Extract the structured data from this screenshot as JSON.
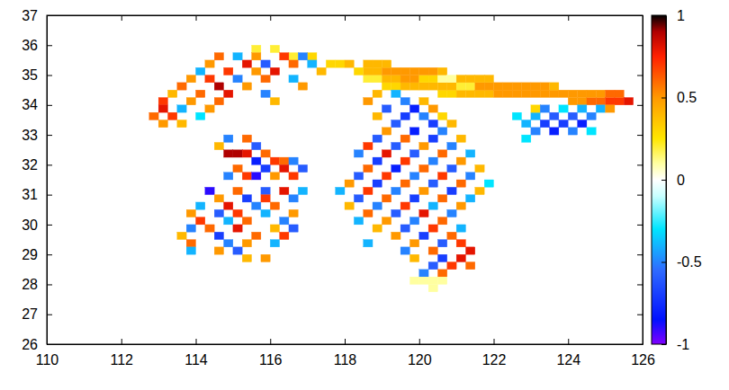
{
  "chart_data": {
    "type": "heatmap",
    "xlim": [
      110,
      126
    ],
    "xticks": [
      110,
      112,
      114,
      116,
      118,
      120,
      122,
      124,
      126
    ],
    "ylim": [
      26,
      37
    ],
    "yticks": [
      26,
      27,
      28,
      29,
      30,
      31,
      32,
      33,
      34,
      35,
      36,
      37
    ],
    "grid": false,
    "cell_size": 0.25,
    "colorbar_range": [
      -1,
      1
    ],
    "colorbar_ticks": [
      -1,
      -0.5,
      0,
      0.5,
      1
    ],
    "cells": [
      [
        118.5,
        34.75,
        0.2
      ],
      [
        118.5,
        35.0,
        0.4
      ],
      [
        118.5,
        35.25,
        0.4
      ],
      [
        118.75,
        34.75,
        0.2
      ],
      [
        118.75,
        35.0,
        0.4
      ],
      [
        118.75,
        35.25,
        0.4
      ],
      [
        119.0,
        34.5,
        0.3
      ],
      [
        119.0,
        34.75,
        0.4
      ],
      [
        119.0,
        35.0,
        0.5
      ],
      [
        119.0,
        35.25,
        0.4
      ],
      [
        119.25,
        34.5,
        0.3
      ],
      [
        119.25,
        34.75,
        0.4
      ],
      [
        119.25,
        35.0,
        0.5
      ],
      [
        119.5,
        34.5,
        0.4
      ],
      [
        119.5,
        34.75,
        0.5
      ],
      [
        119.5,
        35.0,
        0.5
      ],
      [
        119.75,
        34.5,
        0.4
      ],
      [
        119.75,
        34.75,
        0.5
      ],
      [
        119.75,
        35.0,
        0.5
      ],
      [
        120.0,
        34.5,
        0.4
      ],
      [
        120.0,
        34.75,
        0.3
      ],
      [
        120.0,
        35.0,
        0.5
      ],
      [
        120.25,
        34.5,
        0.4
      ],
      [
        120.25,
        34.75,
        0.3
      ],
      [
        120.25,
        35.0,
        0.5
      ],
      [
        120.5,
        34.25,
        0.3
      ],
      [
        120.5,
        34.5,
        0.4
      ],
      [
        120.5,
        34.75,
        0.1
      ],
      [
        120.5,
        35.0,
        0.4
      ],
      [
        120.75,
        34.25,
        0.3
      ],
      [
        120.75,
        34.5,
        0.4
      ],
      [
        120.75,
        34.75,
        0.1
      ],
      [
        121.0,
        34.25,
        0.4
      ],
      [
        121.0,
        34.5,
        0.2
      ],
      [
        121.0,
        34.75,
        0.4
      ],
      [
        121.25,
        34.25,
        0.4
      ],
      [
        121.25,
        34.5,
        0.2
      ],
      [
        121.25,
        34.75,
        0.4
      ],
      [
        121.5,
        34.25,
        0.4
      ],
      [
        121.5,
        34.5,
        0.5
      ],
      [
        121.5,
        34.75,
        0.4
      ],
      [
        121.75,
        34.25,
        0.4
      ],
      [
        121.75,
        34.5,
        0.5
      ],
      [
        121.75,
        34.75,
        0.4
      ],
      [
        122.0,
        34.25,
        0.5
      ],
      [
        122.0,
        34.5,
        0.5
      ],
      [
        122.25,
        34.25,
        0.5
      ],
      [
        122.25,
        34.5,
        0.5
      ],
      [
        122.5,
        34.25,
        0.5
      ],
      [
        122.5,
        34.5,
        0.5
      ],
      [
        122.75,
        34.25,
        0.5
      ],
      [
        122.75,
        34.5,
        0.5
      ],
      [
        123.0,
        34.25,
        0.5
      ],
      [
        123.0,
        34.5,
        0.5
      ],
      [
        123.25,
        34.25,
        0.5
      ],
      [
        123.25,
        34.5,
        0.5
      ],
      [
        123.5,
        34.25,
        0.5
      ],
      [
        123.5,
        34.5,
        0.4
      ],
      [
        123.75,
        34.25,
        0.5
      ],
      [
        124.0,
        34.0,
        0.5
      ],
      [
        124.0,
        34.25,
        0.5
      ],
      [
        124.25,
        34.0,
        0.5
      ],
      [
        124.25,
        34.25,
        0.5
      ],
      [
        124.5,
        34.0,
        0.6
      ],
      [
        124.5,
        34.25,
        0.5
      ],
      [
        124.75,
        34.0,
        0.6
      ],
      [
        124.75,
        34.25,
        0.5
      ],
      [
        125.0,
        34.0,
        0.7
      ],
      [
        125.0,
        34.25,
        0.6
      ],
      [
        125.25,
        34.0,
        0.7
      ],
      [
        125.25,
        34.25,
        0.6
      ],
      [
        125.5,
        34.0,
        0.8
      ],
      [
        115.5,
        35.75,
        0.2
      ],
      [
        116.0,
        35.75,
        0.2
      ],
      [
        116.5,
        35.5,
        0.2
      ],
      [
        117.0,
        35.5,
        0.3
      ],
      [
        117.5,
        35.25,
        0.3
      ],
      [
        117.75,
        35.25,
        0.3
      ],
      [
        118.0,
        35.25,
        0.4
      ],
      [
        118.25,
        35.0,
        0.3
      ],
      [
        122.5,
        33.5,
        -0.3
      ],
      [
        122.75,
        33.25,
        -0.4
      ],
      [
        122.75,
        32.75,
        -0.3
      ],
      [
        123.0,
        33.0,
        -0.5
      ],
      [
        123.0,
        33.5,
        -0.4
      ],
      [
        123.0,
        33.75,
        0.3
      ],
      [
        123.25,
        33.25,
        -0.7
      ],
      [
        123.25,
        33.75,
        -0.5
      ],
      [
        123.5,
        33.0,
        -0.8
      ],
      [
        123.5,
        33.5,
        -0.6
      ],
      [
        123.75,
        33.25,
        -0.7
      ],
      [
        123.75,
        33.75,
        -0.3
      ],
      [
        124.0,
        33.0,
        -0.5
      ],
      [
        124.0,
        33.5,
        -0.6
      ],
      [
        124.25,
        33.25,
        -0.8
      ],
      [
        124.25,
        33.75,
        -0.4
      ],
      [
        124.5,
        33.5,
        -0.5
      ],
      [
        124.5,
        33.0,
        -0.3
      ],
      [
        124.75,
        33.75,
        -0.4
      ],
      [
        125.0,
        33.75,
        0.5
      ],
      [
        114.5,
        35.5,
        0.6
      ],
      [
        115.0,
        35.5,
        -0.4
      ],
      [
        115.5,
        35.5,
        0.5
      ],
      [
        116.25,
        35.5,
        0.7
      ],
      [
        116.75,
        35.5,
        -0.5
      ],
      [
        114.25,
        35.25,
        0.5
      ],
      [
        115.25,
        35.25,
        0.8
      ],
      [
        115.75,
        35.25,
        -0.6
      ],
      [
        116.5,
        35.25,
        0.6
      ],
      [
        117.0,
        35.25,
        -0.4
      ],
      [
        114.0,
        35.0,
        -0.4
      ],
      [
        114.75,
        35.0,
        0.7
      ],
      [
        115.5,
        35.0,
        0.5
      ],
      [
        116.0,
        35.0,
        0.8
      ],
      [
        117.25,
        35.0,
        0.4
      ],
      [
        113.75,
        34.75,
        0.5
      ],
      [
        114.25,
        34.75,
        0.7
      ],
      [
        115.0,
        34.75,
        -0.5
      ],
      [
        115.75,
        34.75,
        0.6
      ],
      [
        116.5,
        34.75,
        -0.4
      ],
      [
        113.5,
        34.5,
        0.6
      ],
      [
        114.5,
        34.5,
        0.9
      ],
      [
        115.25,
        34.5,
        0.5
      ],
      [
        116.75,
        34.5,
        0.5
      ],
      [
        113.25,
        34.25,
        0.4
      ],
      [
        114.0,
        34.25,
        0.6
      ],
      [
        114.75,
        34.25,
        0.8
      ],
      [
        115.75,
        34.25,
        -0.5
      ],
      [
        113.0,
        34.0,
        0.7
      ],
      [
        113.75,
        34.0,
        0.5
      ],
      [
        114.5,
        34.0,
        0.6
      ],
      [
        116.0,
        34.0,
        0.4
      ],
      [
        113.0,
        33.75,
        0.8
      ],
      [
        113.5,
        33.75,
        -0.4
      ],
      [
        114.25,
        33.75,
        0.5
      ],
      [
        112.75,
        33.5,
        0.6
      ],
      [
        113.25,
        33.5,
        0.7
      ],
      [
        114.0,
        33.5,
        -0.3
      ],
      [
        113.0,
        33.25,
        0.5
      ],
      [
        113.5,
        33.25,
        0.4
      ],
      [
        114.75,
        32.75,
        -0.5
      ],
      [
        115.25,
        32.75,
        0.6
      ],
      [
        114.5,
        32.5,
        0.4
      ],
      [
        115.5,
        32.5,
        -0.6
      ],
      [
        114.75,
        32.25,
        0.9
      ],
      [
        115.0,
        32.25,
        0.9
      ],
      [
        115.25,
        32.25,
        0.8
      ],
      [
        115.75,
        32.25,
        0.6
      ],
      [
        115.5,
        32.0,
        -0.8
      ],
      [
        116.0,
        32.0,
        0.7
      ],
      [
        116.25,
        32.0,
        0.6
      ],
      [
        116.5,
        32.0,
        -0.5
      ],
      [
        115.0,
        31.75,
        0.6
      ],
      [
        115.75,
        31.75,
        -0.7
      ],
      [
        116.25,
        31.75,
        0.8
      ],
      [
        116.75,
        31.75,
        -0.6
      ],
      [
        114.75,
        31.5,
        -0.5
      ],
      [
        115.25,
        31.5,
        0.7
      ],
      [
        115.5,
        31.5,
        -0.9
      ],
      [
        116.0,
        31.5,
        0.5
      ],
      [
        116.5,
        31.5,
        0.7
      ],
      [
        114.25,
        31.0,
        -0.9
      ],
      [
        115.0,
        31.0,
        0.6
      ],
      [
        115.75,
        31.0,
        -0.6
      ],
      [
        116.25,
        31.0,
        0.8
      ],
      [
        116.75,
        31.0,
        -0.4
      ],
      [
        114.5,
        30.75,
        0.5
      ],
      [
        115.25,
        30.75,
        -0.7
      ],
      [
        115.75,
        30.75,
        0.7
      ],
      [
        116.5,
        30.75,
        -0.5
      ],
      [
        114.0,
        30.5,
        -0.4
      ],
      [
        114.75,
        30.5,
        0.8
      ],
      [
        115.5,
        30.5,
        -0.5
      ],
      [
        116.0,
        30.5,
        0.6
      ],
      [
        113.75,
        30.25,
        0.5
      ],
      [
        114.5,
        30.25,
        -0.6
      ],
      [
        115.0,
        30.25,
        0.7
      ],
      [
        115.75,
        30.25,
        -0.4
      ],
      [
        116.5,
        30.25,
        0.5
      ],
      [
        114.0,
        30.0,
        0.7
      ],
      [
        114.75,
        30.0,
        -0.4
      ],
      [
        115.25,
        30.0,
        0.6
      ],
      [
        116.25,
        30.0,
        -0.5
      ],
      [
        113.75,
        29.75,
        -0.5
      ],
      [
        114.25,
        29.75,
        0.6
      ],
      [
        115.0,
        29.75,
        0.8
      ],
      [
        116.0,
        29.75,
        0.4
      ],
      [
        116.5,
        29.75,
        -0.6
      ],
      [
        113.5,
        29.5,
        0.4
      ],
      [
        114.5,
        29.5,
        -0.7
      ],
      [
        115.5,
        29.5,
        0.6
      ],
      [
        116.25,
        29.5,
        0.7
      ],
      [
        113.75,
        29.25,
        0.6
      ],
      [
        114.75,
        29.25,
        -0.5
      ],
      [
        115.25,
        29.25,
        0.5
      ],
      [
        116.0,
        29.25,
        -0.4
      ],
      [
        113.75,
        29.0,
        -0.4
      ],
      [
        114.5,
        29.0,
        0.5
      ],
      [
        115.0,
        29.0,
        -0.6
      ],
      [
        115.25,
        28.75,
        0.4
      ],
      [
        115.75,
        28.75,
        0.5
      ],
      [
        118.75,
        34.25,
        0.4
      ],
      [
        119.25,
        34.25,
        -0.4
      ],
      [
        118.5,
        34.0,
        0.5
      ],
      [
        119.5,
        34.0,
        -0.5
      ],
      [
        120.0,
        34.0,
        0.4
      ],
      [
        119.0,
        33.75,
        -0.6
      ],
      [
        119.75,
        33.75,
        -0.8
      ],
      [
        120.25,
        33.75,
        0.5
      ],
      [
        118.75,
        33.5,
        0.4
      ],
      [
        119.5,
        33.5,
        -0.7
      ],
      [
        120.0,
        33.5,
        -0.5
      ],
      [
        120.5,
        33.5,
        0.3
      ],
      [
        119.25,
        33.25,
        -0.6
      ],
      [
        120.25,
        33.25,
        -0.7
      ],
      [
        120.75,
        33.25,
        0.4
      ],
      [
        119.0,
        33.0,
        0.5
      ],
      [
        119.75,
        33.0,
        -0.8
      ],
      [
        120.5,
        33.0,
        -0.5
      ],
      [
        118.75,
        32.75,
        -0.6
      ],
      [
        119.5,
        32.75,
        0.6
      ],
      [
        120.25,
        32.75,
        -0.7
      ],
      [
        121.0,
        32.75,
        0.4
      ],
      [
        118.5,
        32.5,
        0.7
      ],
      [
        119.25,
        32.5,
        -0.6
      ],
      [
        120.0,
        32.5,
        0.5
      ],
      [
        120.75,
        32.5,
        -0.5
      ],
      [
        118.25,
        32.25,
        -0.5
      ],
      [
        119.0,
        32.25,
        0.8
      ],
      [
        119.75,
        32.25,
        -0.6
      ],
      [
        120.5,
        32.25,
        0.6
      ],
      [
        121.25,
        32.25,
        -0.4
      ],
      [
        118.75,
        32.0,
        -0.7
      ],
      [
        119.5,
        32.0,
        0.7
      ],
      [
        120.25,
        32.0,
        -0.5
      ],
      [
        121.0,
        32.0,
        0.5
      ],
      [
        118.5,
        31.75,
        0.6
      ],
      [
        119.25,
        31.75,
        -0.8
      ],
      [
        120.0,
        31.75,
        0.6
      ],
      [
        120.75,
        31.75,
        -0.6
      ],
      [
        121.5,
        31.75,
        0.4
      ],
      [
        118.25,
        31.5,
        -0.6
      ],
      [
        119.0,
        31.5,
        0.7
      ],
      [
        119.75,
        31.5,
        -0.5
      ],
      [
        120.5,
        31.5,
        0.7
      ],
      [
        121.25,
        31.5,
        -0.5
      ],
      [
        118.0,
        31.25,
        0.5
      ],
      [
        118.75,
        31.25,
        -0.7
      ],
      [
        119.5,
        31.25,
        0.6
      ],
      [
        120.25,
        31.25,
        -0.6
      ],
      [
        121.0,
        31.25,
        0.6
      ],
      [
        121.75,
        31.25,
        -0.3
      ],
      [
        117.75,
        31.0,
        -0.4
      ],
      [
        118.5,
        31.0,
        0.7
      ],
      [
        119.25,
        31.0,
        -0.5
      ],
      [
        120.0,
        31.0,
        0.5
      ],
      [
        120.75,
        31.0,
        -0.7
      ],
      [
        121.5,
        31.0,
        0.4
      ],
      [
        118.25,
        30.75,
        -0.6
      ],
      [
        119.0,
        30.75,
        0.6
      ],
      [
        119.75,
        30.75,
        -0.7
      ],
      [
        120.5,
        30.75,
        0.6
      ],
      [
        121.25,
        30.75,
        -0.4
      ],
      [
        118.0,
        30.5,
        0.4
      ],
      [
        118.75,
        30.5,
        -0.5
      ],
      [
        119.5,
        30.5,
        0.7
      ],
      [
        120.25,
        30.5,
        -0.4
      ],
      [
        121.0,
        30.5,
        0.5
      ],
      [
        118.5,
        30.25,
        0.6
      ],
      [
        119.25,
        30.25,
        -0.6
      ],
      [
        120.0,
        30.25,
        0.8
      ],
      [
        120.75,
        30.25,
        -0.5
      ],
      [
        118.25,
        30.0,
        -0.4
      ],
      [
        119.0,
        30.0,
        0.5
      ],
      [
        119.75,
        30.0,
        -0.5
      ],
      [
        120.5,
        30.0,
        0.6
      ],
      [
        118.75,
        29.75,
        0.4
      ],
      [
        119.5,
        29.75,
        -0.6
      ],
      [
        120.25,
        29.75,
        0.7
      ],
      [
        121.0,
        29.75,
        -0.4
      ],
      [
        119.25,
        29.5,
        0.5
      ],
      [
        120.0,
        29.5,
        -0.7
      ],
      [
        120.75,
        29.5,
        0.6
      ],
      [
        118.5,
        29.25,
        -0.4
      ],
      [
        119.75,
        29.25,
        0.5
      ],
      [
        120.5,
        29.25,
        -0.6
      ],
      [
        121.0,
        29.25,
        0.7
      ],
      [
        119.5,
        29.0,
        -0.5
      ],
      [
        120.25,
        29.0,
        0.6
      ],
      [
        121.25,
        29.0,
        0.8
      ],
      [
        119.75,
        28.75,
        0.4
      ],
      [
        120.5,
        28.75,
        -0.7
      ],
      [
        121.0,
        28.75,
        0.8
      ],
      [
        120.25,
        28.5,
        -0.6
      ],
      [
        120.75,
        28.5,
        0.7
      ],
      [
        121.25,
        28.5,
        0.6
      ],
      [
        120.0,
        28.25,
        -0.5
      ],
      [
        120.5,
        28.25,
        0.6
      ],
      [
        119.75,
        28.0,
        0.1
      ],
      [
        120.0,
        28.0,
        0.1
      ],
      [
        120.25,
        28.0,
        0.1
      ],
      [
        120.5,
        28.0,
        0.1
      ],
      [
        120.25,
        27.75,
        0.1
      ]
    ]
  }
}
